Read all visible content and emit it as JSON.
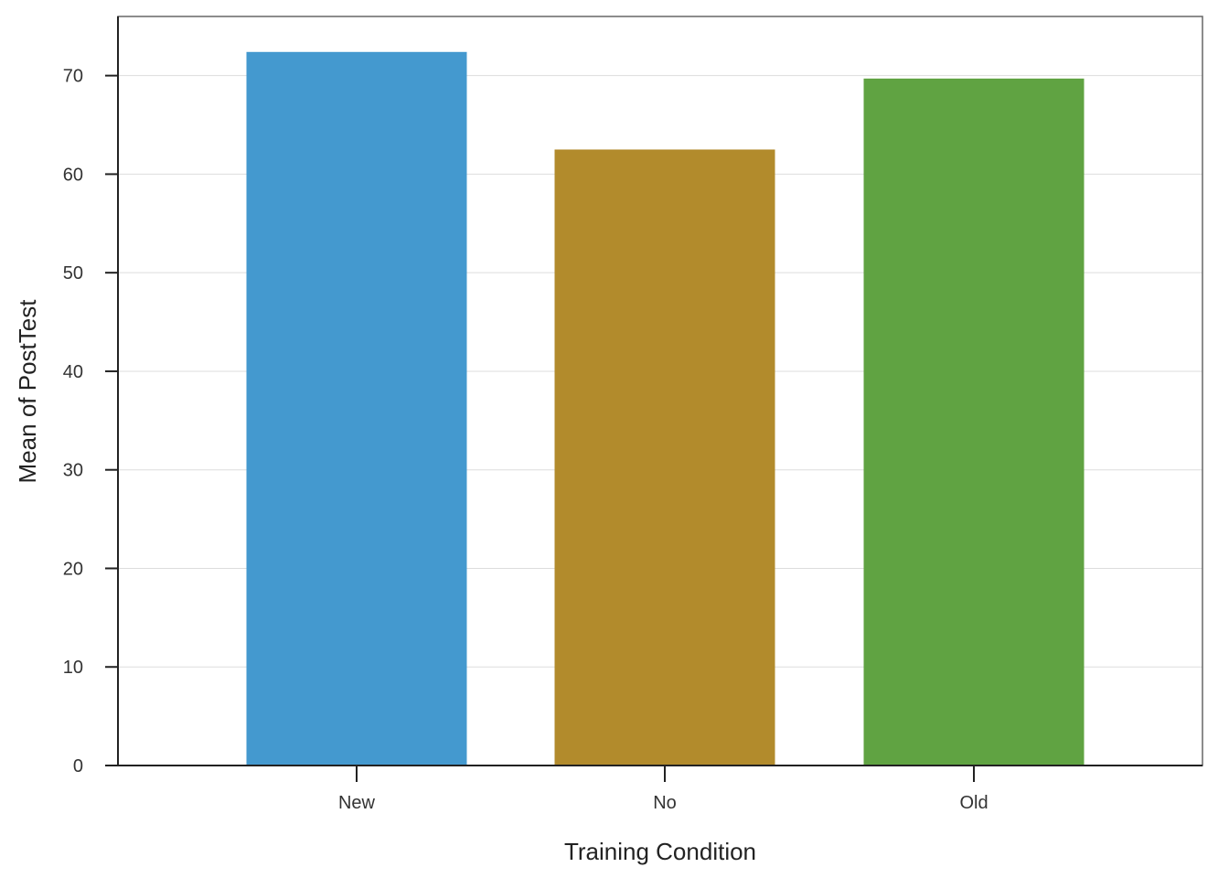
{
  "chart_data": {
    "type": "bar",
    "categories": [
      "New",
      "No",
      "Old"
    ],
    "values": [
      72.4,
      62.5,
      69.7
    ],
    "colors": [
      "#4499cf",
      "#b28b2c",
      "#60a342"
    ],
    "xlabel": "Training Condition",
    "ylabel": "Mean of PostTest",
    "ylim": [
      0,
      76
    ],
    "yticks": [
      0,
      10,
      20,
      30,
      40,
      50,
      60,
      70
    ],
    "grid": true,
    "legend": "none"
  }
}
